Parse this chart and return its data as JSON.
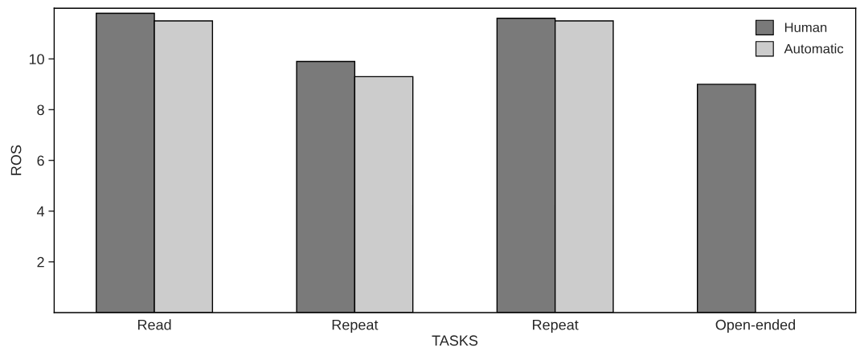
{
  "chart_data": {
    "type": "bar",
    "xlabel": "TASKS",
    "ylabel": "ROS",
    "categories": [
      "Read",
      "Repeat",
      "Repeat",
      "Open-ended"
    ],
    "series": [
      {
        "name": "Human",
        "color": "#7a7a7a",
        "values": [
          11.8,
          9.9,
          11.6,
          9.0
        ]
      },
      {
        "name": "Automatic",
        "color": "#cccccc",
        "values": [
          11.5,
          9.3,
          11.5,
          null
        ]
      }
    ],
    "ylim": [
      0,
      12
    ],
    "yticks": [
      2,
      4,
      6,
      8,
      10
    ],
    "grid": false,
    "legend": "top right"
  }
}
